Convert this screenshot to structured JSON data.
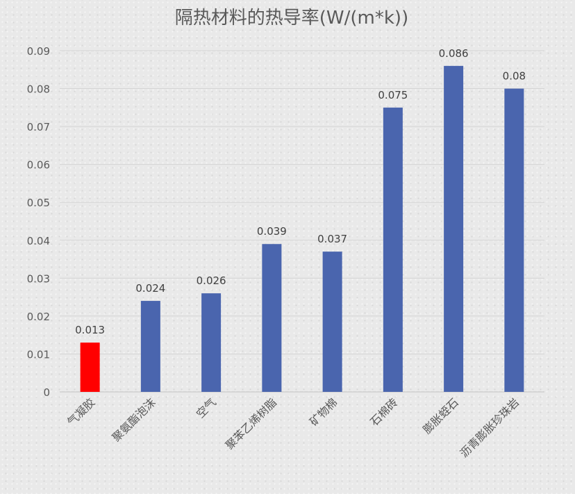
{
  "chart_data": {
    "type": "bar",
    "title": "隔热材料的热导率(W/(m*k))",
    "categories": [
      "气凝胶",
      "聚氨酯泡沫",
      "空气",
      "聚苯乙烯树脂",
      "矿物棉",
      "石棉砖",
      "膨胀蛭石",
      "沥青膨胀珍珠岩"
    ],
    "values": [
      0.013,
      0.024,
      0.026,
      0.039,
      0.037,
      0.075,
      0.086,
      0.08
    ],
    "data_labels": [
      "0.013",
      "0.024",
      "0.026",
      "0.039",
      "0.037",
      "0.075",
      "0.086",
      "0.08"
    ],
    "bar_colors": [
      "#ff0000",
      "#4a65ae",
      "#4a65ae",
      "#4a65ae",
      "#4a65ae",
      "#4a65ae",
      "#4a65ae",
      "#4a65ae"
    ],
    "ylim": [
      0,
      0.09
    ],
    "y_ticks": [
      "0",
      "0.01",
      "0.02",
      "0.03",
      "0.04",
      "0.05",
      "0.06",
      "0.07",
      "0.08",
      "0.09"
    ],
    "y_tick_values": [
      0,
      0.01,
      0.02,
      0.03,
      0.04,
      0.05,
      0.06,
      0.07,
      0.08,
      0.09
    ],
    "xlabel": "",
    "ylabel": "",
    "grid": true,
    "legend": "none"
  }
}
